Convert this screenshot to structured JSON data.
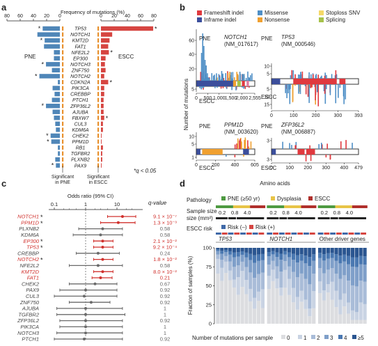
{
  "panel_labels": {
    "a": "a",
    "b": "b",
    "c": "c",
    "d": "d"
  },
  "colors": {
    "pne_bar": "#4f86b8",
    "escc_bar": "#d64541",
    "sig_marker": "#e8902c",
    "frameshift": "#e0393e",
    "missense": "#4f8fc6",
    "stoploss": "#f5d867",
    "inframe": "#3b4e9c",
    "nonsense": "#f0a030",
    "splicing": "#a6c24a",
    "pne_group": "#4e9a41",
    "dysplasia": "#e8c447",
    "escc_group": "#b0302c",
    "risk_neg": "#3f69a8",
    "risk_pos": "#d64541",
    "sig_text": "#d0312d"
  },
  "chart_data": [
    {
      "id": "a",
      "type": "bar",
      "title": "Frequency of mutations (%)",
      "axis_ticks": [
        "80",
        "60",
        "40",
        "20",
        "0",
        "20",
        "40",
        "60",
        "80"
      ],
      "group_labels": {
        "left": "PNE",
        "right": "ESCC"
      },
      "genes": [
        "TP53",
        "NOTCH1",
        "KMT2D",
        "FAT1",
        "NFE2L2",
        "EP300",
        "NOTCH3",
        "ZNF750",
        "NOTCH2",
        "CDKN2A",
        "PIK3CA",
        "CREBBP",
        "PTCH1",
        "ZFP36L2",
        "AJUBA",
        "FBXW7",
        "CUL3",
        "KDM6A",
        "CHEK2",
        "PPM1D",
        "RB1",
        "TGFBR2",
        "PLXNB2",
        "PAX9"
      ],
      "series": [
        {
          "name": "PNE",
          "values": [
            26,
            34,
            23,
            24,
            9,
            9,
            21,
            12,
            31,
            3,
            11,
            8,
            12,
            21,
            11,
            9,
            7,
            6,
            14,
            13,
            3,
            3,
            7,
            6
          ]
        },
        {
          "name": "ESCC",
          "values": [
            79,
            17,
            13,
            11,
            12,
            7,
            6,
            7,
            5,
            11,
            5,
            5,
            4,
            4,
            4,
            5,
            3,
            3,
            1,
            1,
            3,
            2,
            2,
            1
          ]
        }
      ],
      "pne_star": [
        true,
        false,
        true,
        false,
        false,
        false,
        true,
        false,
        true,
        false,
        false,
        false,
        false,
        true,
        false,
        false,
        false,
        false,
        true,
        true,
        false,
        false,
        false,
        true
      ],
      "escc_star": [
        true,
        false,
        false,
        false,
        true,
        false,
        false,
        false,
        false,
        true,
        false,
        false,
        false,
        false,
        false,
        true,
        false,
        false,
        false,
        false,
        false,
        false,
        false,
        false
      ],
      "legend_note": "*q < 0.05",
      "sig_labels": {
        "pne": "Significant\nin PNE",
        "escc": "Significant\nin ESCC"
      }
    },
    {
      "id": "b",
      "type": "bar",
      "legend": [
        "Frameshift indel",
        "Missense",
        "Stoploss SNV",
        "Inframe indel",
        "Nonsense",
        "Splicing"
      ],
      "ylabel": "Number of mutations",
      "xlabel": "Amino acids",
      "subpanels": [
        {
          "gene": "NOTCH1",
          "transcript": "(NM_017617)",
          "pne_label": "PNE",
          "escc_label": "ESCC",
          "yticks_top": [
            "60",
            "40",
            "20"
          ],
          "yticks_bottom": [
            "5"
          ],
          "xticks": [
            "0",
            "500",
            "1,000",
            "1,500",
            "2,000",
            "2,555"
          ]
        },
        {
          "gene": "TP53",
          "transcript": "(NM_000546)",
          "pne_label": "PNE",
          "escc_label": "ESCC",
          "yticks_top": [
            "10",
            "5"
          ],
          "yticks_bottom": [
            "5",
            "10",
            "15"
          ],
          "xticks": [
            "0",
            "100",
            "200",
            "300",
            "393"
          ]
        },
        {
          "gene": "PPM1D",
          "transcript": "(NM_003620)",
          "pne_label": "PNE",
          "escc_label": "ESCC",
          "yticks_top": [
            "10",
            "5"
          ],
          "yticks_bottom": [
            "1"
          ],
          "xticks": [
            "0",
            "200",
            "400",
            "605"
          ]
        },
        {
          "gene": "ZFP36L2",
          "transcript": "(NM_006887)",
          "pne_label": "PNE",
          "escc_label": "ESCC",
          "yticks_top": [
            "3"
          ],
          "yticks_bottom": [
            "3"
          ],
          "xticks": [
            "0",
            "100",
            "200",
            "300",
            "400",
            "479"
          ]
        }
      ]
    },
    {
      "id": "c",
      "type": "scatter",
      "title": "Odds ratio (95% CI)",
      "qlabel": "q-value",
      "xticks": [
        "0.1",
        "1",
        "10"
      ],
      "rows": [
        {
          "gene": "NOTCH1",
          "or": 15,
          "lo": 5,
          "hi": 40,
          "q": "9.1 × 10⁻⁷",
          "sig": true,
          "star": true
        },
        {
          "gene": "PPM1D",
          "or": 11,
          "lo": 3,
          "hi": 38,
          "q": "1.3 × 10⁻³",
          "sig": true,
          "star": true
        },
        {
          "gene": "PLXNB2",
          "or": 3.5,
          "lo": 0.6,
          "hi": 15,
          "q": "0.58",
          "sig": false,
          "star": false
        },
        {
          "gene": "KDM6A",
          "or": 3,
          "lo": 0.4,
          "hi": 15,
          "q": "0.58",
          "sig": false,
          "star": false
        },
        {
          "gene": "EP300",
          "or": 3.5,
          "lo": 1.8,
          "hi": 7.5,
          "q": "2.1 × 10⁻²",
          "sig": true,
          "star": true
        },
        {
          "gene": "TP53",
          "or": 3.5,
          "lo": 1.8,
          "hi": 7.5,
          "q": "9.2 × 10⁻⁴",
          "sig": true,
          "star": true
        },
        {
          "gene": "CREBBP",
          "or": 2.5,
          "lo": 0.5,
          "hi": 12,
          "q": "0.24",
          "sig": false,
          "star": false
        },
        {
          "gene": "NOTCH2",
          "or": 3.5,
          "lo": 1.8,
          "hi": 7.5,
          "q": "1.8 × 10⁻²",
          "sig": true,
          "star": true
        },
        {
          "gene": "NFE2L2",
          "or": 2.5,
          "lo": 0.3,
          "hi": 15,
          "q": "0.58",
          "sig": false,
          "star": false
        },
        {
          "gene": "KMT2D",
          "or": 3.5,
          "lo": 1.8,
          "hi": 7.5,
          "q": "8.0 × 10⁻²",
          "sig": true,
          "star": false
        },
        {
          "gene": "FAT1",
          "or": 3,
          "lo": 1.6,
          "hi": 7,
          "q": "0.21",
          "sig": true,
          "star": false
        },
        {
          "gene": "CHEK2",
          "or": 2,
          "lo": 0.3,
          "hi": 10,
          "q": "0.67",
          "sig": false,
          "star": false
        },
        {
          "gene": "PAX9",
          "or": 1,
          "lo": 0.15,
          "hi": 10,
          "q": "0.92",
          "sig": false,
          "star": false
        },
        {
          "gene": "CUL3",
          "or": 0.9,
          "lo": 0.1,
          "hi": 10,
          "q": "0.92",
          "sig": false,
          "star": false
        },
        {
          "gene": "ZNF750",
          "or": 1.5,
          "lo": 0.3,
          "hi": 6,
          "q": "0.92",
          "sig": false,
          "star": false
        },
        {
          "gene": "AJUBA",
          "or": 1,
          "lo": 0.12,
          "hi": 15,
          "q": "1",
          "sig": false,
          "star": false
        },
        {
          "gene": "TGFBR2",
          "or": 1,
          "lo": 0.12,
          "hi": 18,
          "q": "1",
          "sig": false,
          "star": false
        },
        {
          "gene": "ZFP36L2",
          "or": 1,
          "lo": 0.15,
          "hi": 15,
          "q": "0.92",
          "sig": false,
          "star": false
        },
        {
          "gene": "PIK3CA",
          "or": 1,
          "lo": 0.15,
          "hi": 15,
          "q": "1",
          "sig": false,
          "star": false
        },
        {
          "gene": "NOTCH3",
          "or": 1,
          "lo": 0.12,
          "hi": 15,
          "q": "1",
          "sig": false,
          "star": false
        },
        {
          "gene": "PTCH1",
          "or": 0.9,
          "lo": 0.1,
          "hi": 15,
          "q": "0.92",
          "sig": false,
          "star": false
        }
      ]
    },
    {
      "id": "d",
      "type": "bar",
      "ylabel": "Fraction of samples (%)",
      "xlabel": "Number of mutations per sample",
      "yticks": [
        "100",
        "75",
        "50",
        "25",
        "0"
      ],
      "pathology_label": "Pathology",
      "pathology_legend": [
        "PNE (≥50 yr)",
        "Dysplasia",
        "ESCC"
      ],
      "size_label": "Sample size (mm²)",
      "size_ticks": [
        "0.2",
        "0.8",
        "4.0"
      ],
      "risk_label": "ESCC risk",
      "risk_legend": [
        "Risk (–)",
        "Risk (+)"
      ],
      "groups": [
        "TP53",
        "NOTCH1",
        "Other driver genes"
      ],
      "legend_counts": [
        "0",
        "1",
        "2",
        "3",
        "4",
        "≥5"
      ]
    }
  ]
}
